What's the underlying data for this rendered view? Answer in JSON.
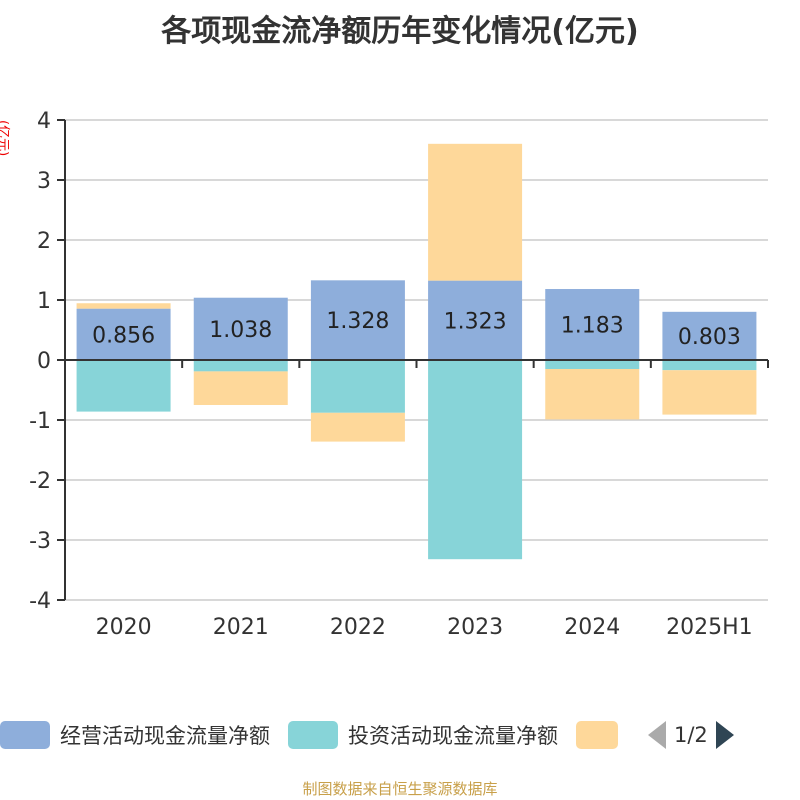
{
  "chart_data": {
    "type": "bar",
    "stacked": true,
    "title": "各项现金流净额历年变化情况(亿元)",
    "ylabel": "(亿元)",
    "xlabel": "",
    "ylim": [
      -4,
      4
    ],
    "yticks": [
      4,
      3,
      2,
      1,
      0,
      -1,
      -2,
      -3,
      -4
    ],
    "categories": [
      "2020",
      "2021",
      "2022",
      "2023",
      "2024",
      "2025H1"
    ],
    "series": [
      {
        "name": "经营活动现金流量净额",
        "color": "#8eaedb",
        "values": [
          0.856,
          1.038,
          1.328,
          1.323,
          1.183,
          0.803
        ],
        "labels": [
          "0.856",
          "1.038",
          "1.328",
          "1.323",
          "1.183",
          "0.803"
        ]
      },
      {
        "name": "投资活动现金流量净额",
        "color": "#87d4d8",
        "values": [
          -0.86,
          -0.19,
          -0.88,
          -3.32,
          -0.15,
          -0.17
        ]
      },
      {
        "name": "",
        "color": "#fed89a",
        "values": [
          0.09,
          -0.56,
          -0.48,
          2.28,
          -0.84,
          -0.74
        ]
      }
    ],
    "grid": true,
    "legend_position": "bottom"
  },
  "legend": {
    "page": "1/2"
  },
  "footer": "制图数据来自恒生聚源数据库"
}
